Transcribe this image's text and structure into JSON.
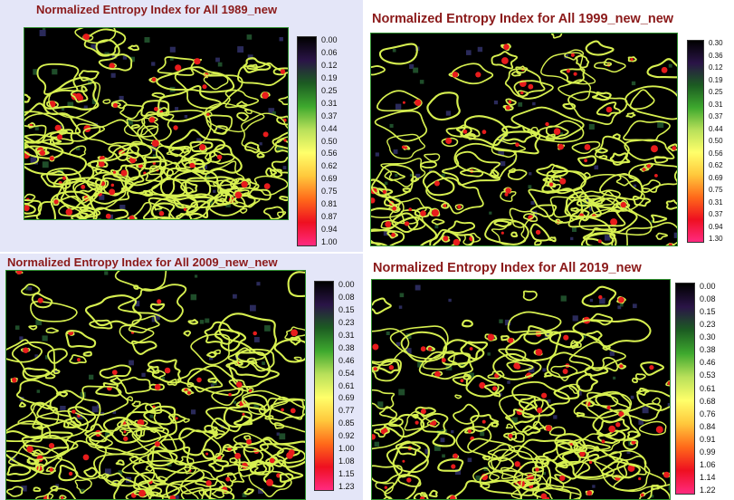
{
  "colors": {
    "title": "#8b1a1a",
    "contour_outer": "#d7f050",
    "contour_inner": "#e81c1c",
    "map_background": "#000000",
    "map_border": "#2f8f2f",
    "panel_background": "#e4e6f8",
    "colorbar_stops": [
      "#000000",
      "#2a1447",
      "#1c5c22",
      "#3ea92e",
      "#b8e05a",
      "#ffff6a",
      "#ffc83c",
      "#ff6a1a",
      "#ee1020",
      "#ff2a80"
    ]
  },
  "panels": [
    {
      "title": "Normalized Entropy Index for All 1989_new",
      "legend": [
        "0.00",
        "0.06",
        "0.12",
        "0.19",
        "0.25",
        "0.31",
        "0.37",
        "0.44",
        "0.50",
        "0.56",
        "0.62",
        "0.69",
        "0.75",
        "0.81",
        "0.87",
        "0.94",
        "1.00"
      ]
    },
    {
      "title": "Normalized Entropy Index for All 1999_new_new",
      "legend": [
        "0.30",
        "0.36",
        "0.12",
        "0.19",
        "0.25",
        "0.31",
        "0.37",
        "0.44",
        "0.50",
        "0.56",
        "0.62",
        "0.69",
        "0.75",
        "0.31",
        "0.37",
        "0.94",
        "1.30"
      ]
    },
    {
      "title": "Normalized Entropy Index for All 2009_new_new",
      "legend": [
        "0.00",
        "0.08",
        "0.15",
        "0.23",
        "0.31",
        "0.38",
        "0.46",
        "0.54",
        "0.61",
        "0.69",
        "0.77",
        "0.85",
        "0.92",
        "1.00",
        "1.08",
        "1.15",
        "1.23"
      ]
    },
    {
      "title": "Normalized Entropy Index for All 2019_new",
      "legend": [
        "0.00",
        "0.08",
        "0.15",
        "0.23",
        "0.30",
        "0.38",
        "0.46",
        "0.53",
        "0.61",
        "0.68",
        "0.76",
        "0.84",
        "0.91",
        "0.99",
        "1.06",
        "1.14",
        "1.22"
      ]
    }
  ]
}
